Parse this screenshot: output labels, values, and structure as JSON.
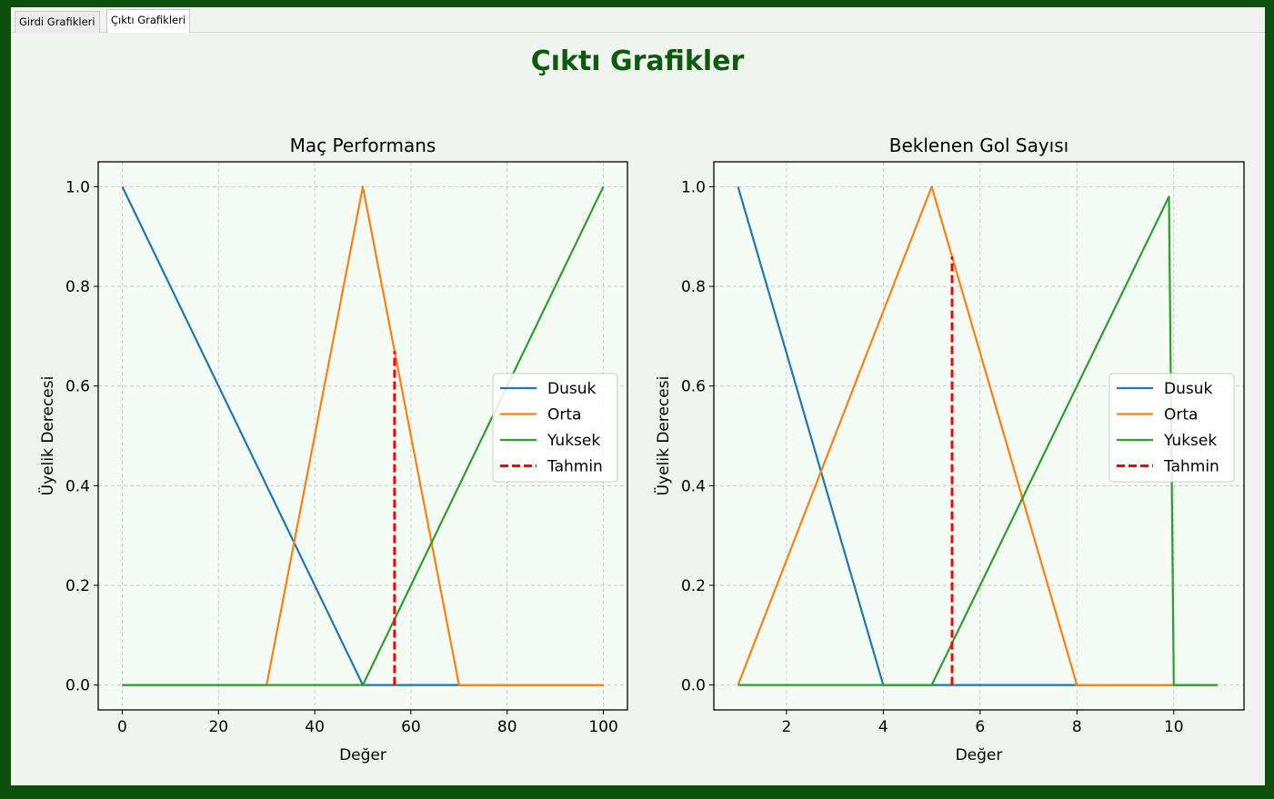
{
  "tabs": [
    {
      "label": "Girdi Grafikleri",
      "active": false
    },
    {
      "label": "Çıktı Grafikleri",
      "active": true
    }
  ],
  "figure": {
    "suptitle": "Çıktı Grafikler",
    "suptitle_color": "#0d5a0d",
    "background": "#eff4ef",
    "axes_background": "#f5fcf5"
  },
  "chart_data": [
    {
      "type": "line",
      "title": "Maç Performans",
      "xlabel": "Değer",
      "ylabel": "Üyelik Derecesi",
      "xlim": [
        -5,
        105
      ],
      "ylim": [
        -0.05,
        1.05
      ],
      "xticks": [
        0,
        20,
        40,
        60,
        80,
        100
      ],
      "yticks": [
        0.0,
        0.2,
        0.4,
        0.6,
        0.8,
        1.0
      ],
      "ytick_labels": [
        "0.0",
        "0.2",
        "0.4",
        "0.6",
        "0.8",
        "1.0"
      ],
      "grid": true,
      "legend_position": "center-right",
      "series": [
        {
          "name": "Dusuk",
          "color": "#1f77b4",
          "x": [
            0,
            50,
            100
          ],
          "y": [
            1.0,
            0.0,
            0.0
          ]
        },
        {
          "name": "Orta",
          "color": "#ff7f0e",
          "x": [
            0,
            30,
            50,
            70,
            100
          ],
          "y": [
            0.0,
            0.0,
            1.0,
            0.0,
            0.0
          ]
        },
        {
          "name": "Yuksek",
          "color": "#2ca02c",
          "x": [
            0,
            50,
            100
          ],
          "y": [
            0.0,
            0.0,
            1.0
          ]
        },
        {
          "name": "Tahmin",
          "color": "#ff0000",
          "dashed": true,
          "x": [
            56.6,
            56.6
          ],
          "y": [
            0.0,
            0.67
          ]
        }
      ]
    },
    {
      "type": "line",
      "title": "Beklenen Gol Sayısı",
      "xlabel": "Değer",
      "ylabel": "Üyelik Derecesi",
      "xlim": [
        0.5,
        11.45
      ],
      "ylim": [
        -0.05,
        1.05
      ],
      "xticks": [
        2,
        4,
        6,
        8,
        10
      ],
      "yticks": [
        0.0,
        0.2,
        0.4,
        0.6,
        0.8,
        1.0
      ],
      "ytick_labels": [
        "0.0",
        "0.2",
        "0.4",
        "0.6",
        "0.8",
        "1.0"
      ],
      "grid": true,
      "legend_position": "center-right",
      "series": [
        {
          "name": "Dusuk",
          "color": "#1f77b4",
          "x": [
            1,
            4,
            10.9
          ],
          "y": [
            1.0,
            0.0,
            0.0
          ]
        },
        {
          "name": "Orta",
          "color": "#ff7f0e",
          "x": [
            1,
            5,
            8,
            10.9
          ],
          "y": [
            0.0,
            1.0,
            0.0,
            0.0
          ]
        },
        {
          "name": "Yuksek",
          "color": "#2ca02c",
          "x": [
            1,
            5,
            9.9,
            10.0,
            10.9
          ],
          "y": [
            0.0,
            0.0,
            0.98,
            0.0,
            0.0
          ]
        },
        {
          "name": "Tahmin",
          "color": "#ff0000",
          "dashed": true,
          "x": [
            5.42,
            5.42
          ],
          "y": [
            0.0,
            0.86
          ]
        }
      ]
    }
  ]
}
